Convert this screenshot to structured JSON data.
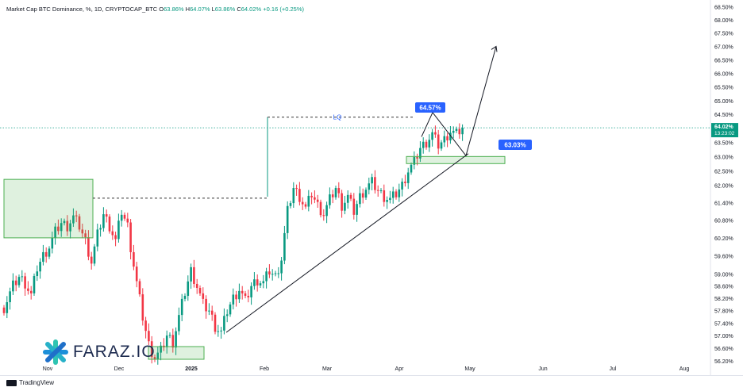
{
  "header": {
    "title": "Market Cap BTC Dominance, %, 1D, CRYPTOCAP_BTC",
    "open_label": "O",
    "open_value": "63.86%",
    "high_label": "H",
    "high_value": "64.07%",
    "low_label": "L",
    "low_value": "63.86%",
    "close_label": "C",
    "close_value": "64.02%",
    "change": "+0.16 (+0.25%)"
  },
  "price_axis": {
    "current_price": "64.02%",
    "countdown": "13:23:02",
    "accent_color": "#089981"
  },
  "annotations": {
    "lq_label": "LQ",
    "callout_high": "64.57%",
    "callout_support": "63.03%",
    "callout_color": "#2962ff",
    "zone_color": "#4caf50"
  },
  "brand": {
    "name": "FARAZ.IO",
    "icon": "faraz-logo-icon"
  },
  "footer": {
    "logo_text": "TradingView",
    "icon": "tradingview-logo-icon"
  },
  "chart_data": {
    "type": "candlestick",
    "title": "Market Cap BTC Dominance, %, 1D, CRYPTOCAP_BTC",
    "y_scale": "log",
    "y_ticks": [
      "68.50%",
      "68.00%",
      "67.50%",
      "67.00%",
      "66.50%",
      "66.00%",
      "65.50%",
      "65.00%",
      "64.50%",
      "64.00%",
      "63.50%",
      "63.00%",
      "62.50%",
      "62.00%",
      "61.40%",
      "60.80%",
      "60.20%",
      "59.60%",
      "59.00%",
      "58.60%",
      "58.20%",
      "57.80%",
      "57.40%",
      "57.00%",
      "56.60%",
      "56.20%"
    ],
    "x_ticks": [
      "Nov",
      "Dec",
      "2025",
      "Feb",
      "Mar",
      "Apr",
      "May",
      "Jun",
      "Jul",
      "Aug"
    ],
    "ylim": [
      56.1,
      68.7
    ],
    "last": {
      "open": 63.86,
      "high": 64.07,
      "low": 63.86,
      "close": 64.02,
      "change": 0.16,
      "change_pct": 0.25
    },
    "series_close": [
      [
        0,
        57.9
      ],
      [
        3,
        58.6
      ],
      [
        5,
        58.9
      ],
      [
        7,
        58.7
      ],
      [
        9,
        58.3
      ],
      [
        11,
        59.2
      ],
      [
        13,
        59.6
      ],
      [
        15,
        59.9
      ],
      [
        17,
        60.4
      ],
      [
        19,
        60.7
      ],
      [
        21,
        60.6
      ],
      [
        23,
        60.9
      ],
      [
        25,
        60.6
      ],
      [
        27,
        60.1
      ],
      [
        29,
        59.4
      ],
      [
        31,
        60.3
      ],
      [
        33,
        61.0
      ],
      [
        35,
        60.6
      ],
      [
        37,
        60.1
      ],
      [
        39,
        61.1
      ],
      [
        41,
        60.6
      ],
      [
        42,
        59.9
      ],
      [
        44,
        58.7
      ],
      [
        46,
        57.6
      ],
      [
        48,
        56.7
      ],
      [
        50,
        56.3
      ],
      [
        52,
        56.5
      ],
      [
        54,
        57.0
      ],
      [
        56,
        56.8
      ],
      [
        58,
        57.6
      ],
      [
        60,
        58.4
      ],
      [
        62,
        59.1
      ],
      [
        64,
        58.6
      ],
      [
        66,
        58.0
      ],
      [
        68,
        57.8
      ],
      [
        70,
        57.3
      ],
      [
        72,
        57.1
      ],
      [
        74,
        57.8
      ],
      [
        76,
        58.2
      ],
      [
        78,
        58.5
      ],
      [
        80,
        58.1
      ],
      [
        82,
        58.6
      ],
      [
        84,
        58.8
      ],
      [
        86,
        58.7
      ],
      [
        88,
        59.1
      ],
      [
        90,
        58.9
      ],
      [
        92,
        59.5
      ],
      [
        94,
        61.1
      ],
      [
        96,
        61.9
      ],
      [
        98,
        61.6
      ],
      [
        100,
        61.2
      ],
      [
        102,
        61.7
      ],
      [
        104,
        61.3
      ],
      [
        106,
        61.0
      ],
      [
        108,
        61.5
      ],
      [
        110,
        61.9
      ],
      [
        112,
        61.3
      ],
      [
        114,
        61.6
      ],
      [
        116,
        61.1
      ],
      [
        118,
        61.6
      ],
      [
        120,
        61.9
      ],
      [
        122,
        62.1
      ],
      [
        124,
        61.8
      ],
      [
        126,
        61.6
      ],
      [
        128,
        61.5
      ],
      [
        130,
        61.7
      ],
      [
        132,
        62.0
      ],
      [
        134,
        62.5
      ],
      [
        136,
        62.8
      ],
      [
        138,
        63.3
      ],
      [
        140,
        63.5
      ],
      [
        142,
        63.8
      ],
      [
        144,
        63.4
      ],
      [
        146,
        63.6
      ],
      [
        148,
        63.9
      ],
      [
        150,
        63.8
      ],
      [
        152,
        64.02
      ]
    ],
    "liquidity_level": 64.4,
    "prior_high_level": 61.55,
    "supply_zone": [
      60.2,
      62.2
    ],
    "demand_zone_low": [
      56.25,
      56.65
    ],
    "support_zone": [
      62.75,
      63.0
    ],
    "projection_path": [
      {
        "date": "mid Apr",
        "value": 63.7
      },
      {
        "date": "mid Apr",
        "value": 64.57
      },
      {
        "date": "late Apr",
        "value": 63.03
      },
      {
        "date": "mid May",
        "value": 67.0
      }
    ],
    "trendline": [
      {
        "date": "mid Jan",
        "value": 57.1
      },
      {
        "date": "late Apr",
        "value": 63.1
      }
    ],
    "grid": false
  }
}
